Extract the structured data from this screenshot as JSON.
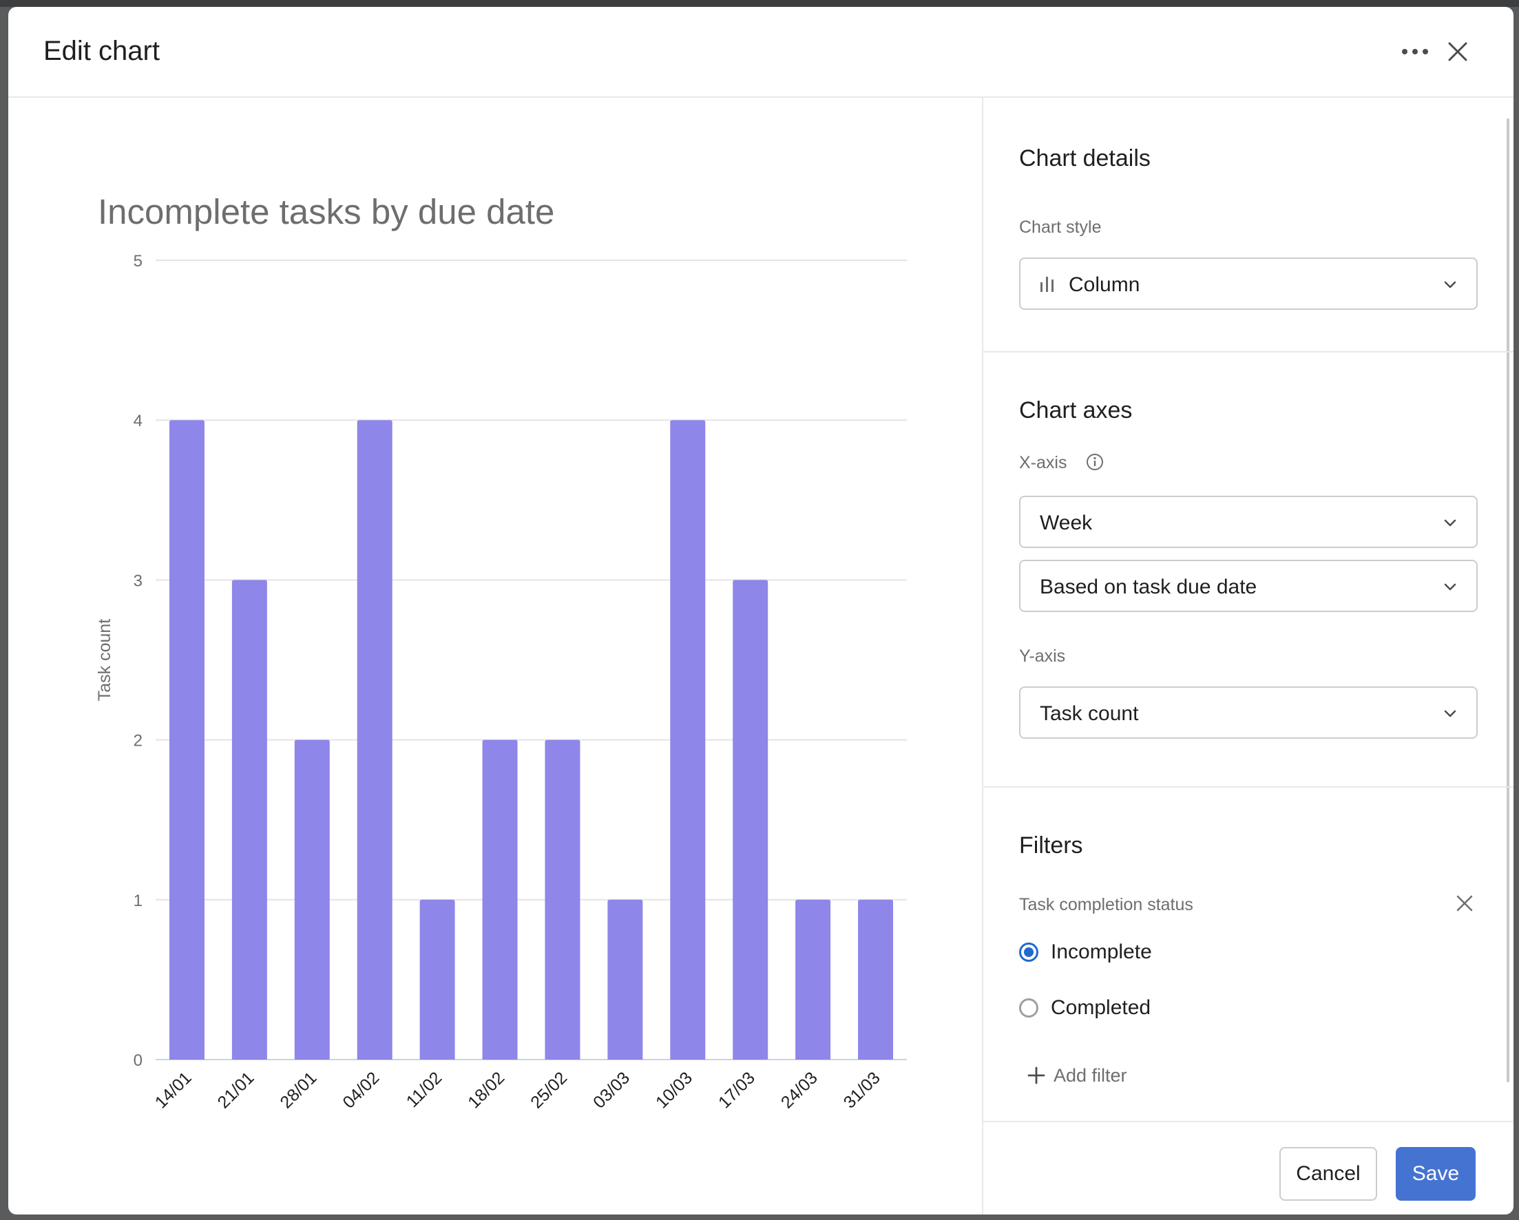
{
  "header": {
    "title": "Edit chart",
    "more_icon": "more-horizontal-icon",
    "close_icon": "close-icon"
  },
  "chart_data": {
    "type": "bar",
    "title": "Incomplete tasks by due date",
    "xlabel": "",
    "ylabel": "Task count",
    "categories": [
      "14/01",
      "21/01",
      "28/01",
      "04/02",
      "11/02",
      "18/02",
      "25/02",
      "03/03",
      "10/03",
      "17/03",
      "24/03",
      "31/03"
    ],
    "values": [
      4,
      3,
      2,
      4,
      1,
      2,
      2,
      1,
      4,
      3,
      1,
      1
    ],
    "ylim": [
      0,
      5
    ],
    "yticks": [
      0,
      1,
      2,
      3,
      4,
      5
    ],
    "grid": true,
    "bar_color": "#8e86e8"
  },
  "settings": {
    "details_title": "Chart details",
    "chart_style_label": "Chart style",
    "chart_style_value": "Column",
    "chart_style_icon": "column-chart-icon",
    "axes_title": "Chart axes",
    "x_axis_label": "X-axis",
    "x_axis_value": "Week",
    "x_axis_basis": "Based on task due date",
    "y_axis_label": "Y-axis",
    "y_axis_value": "Task count",
    "filters_title": "Filters",
    "filter_name": "Task completion status",
    "options": [
      "Incomplete",
      "Completed"
    ],
    "selected_option": "Incomplete",
    "add_filter": "Add filter"
  },
  "footer": {
    "cancel": "Cancel",
    "save": "Save"
  },
  "colors": {
    "accent": "#4573d2",
    "radio": "#1e6ad0",
    "bar": "#8e86e8"
  }
}
